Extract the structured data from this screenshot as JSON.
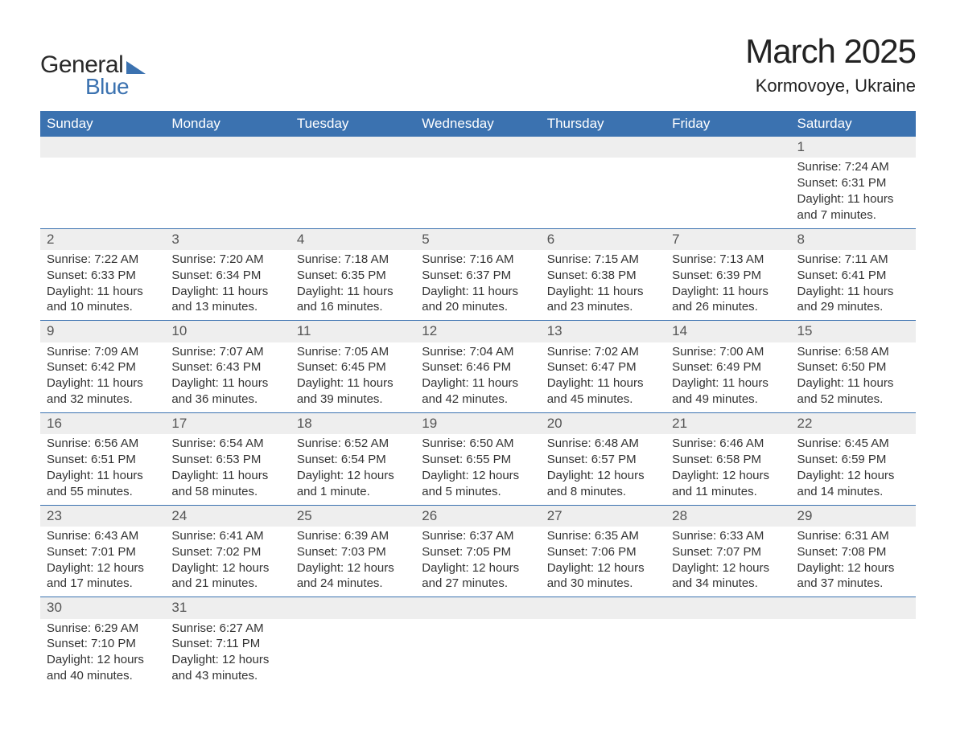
{
  "logo": {
    "text1": "General",
    "text2": "Blue"
  },
  "title": {
    "month": "March 2025",
    "location": "Kormovoye, Ukraine"
  },
  "colors": {
    "header_bg": "#3b72b0",
    "header_fg": "#ffffff",
    "daynum_bg": "#eeeeee",
    "row_border": "#3b72b0",
    "text": "#333333"
  },
  "weekdays": [
    "Sunday",
    "Monday",
    "Tuesday",
    "Wednesday",
    "Thursday",
    "Friday",
    "Saturday"
  ],
  "weeks": [
    [
      null,
      null,
      null,
      null,
      null,
      null,
      {
        "n": "1",
        "sunrise": "Sunrise: 7:24 AM",
        "sunset": "Sunset: 6:31 PM",
        "day1": "Daylight: 11 hours",
        "day2": "and 7 minutes."
      }
    ],
    [
      {
        "n": "2",
        "sunrise": "Sunrise: 7:22 AM",
        "sunset": "Sunset: 6:33 PM",
        "day1": "Daylight: 11 hours",
        "day2": "and 10 minutes."
      },
      {
        "n": "3",
        "sunrise": "Sunrise: 7:20 AM",
        "sunset": "Sunset: 6:34 PM",
        "day1": "Daylight: 11 hours",
        "day2": "and 13 minutes."
      },
      {
        "n": "4",
        "sunrise": "Sunrise: 7:18 AM",
        "sunset": "Sunset: 6:35 PM",
        "day1": "Daylight: 11 hours",
        "day2": "and 16 minutes."
      },
      {
        "n": "5",
        "sunrise": "Sunrise: 7:16 AM",
        "sunset": "Sunset: 6:37 PM",
        "day1": "Daylight: 11 hours",
        "day2": "and 20 minutes."
      },
      {
        "n": "6",
        "sunrise": "Sunrise: 7:15 AM",
        "sunset": "Sunset: 6:38 PM",
        "day1": "Daylight: 11 hours",
        "day2": "and 23 minutes."
      },
      {
        "n": "7",
        "sunrise": "Sunrise: 7:13 AM",
        "sunset": "Sunset: 6:39 PM",
        "day1": "Daylight: 11 hours",
        "day2": "and 26 minutes."
      },
      {
        "n": "8",
        "sunrise": "Sunrise: 7:11 AM",
        "sunset": "Sunset: 6:41 PM",
        "day1": "Daylight: 11 hours",
        "day2": "and 29 minutes."
      }
    ],
    [
      {
        "n": "9",
        "sunrise": "Sunrise: 7:09 AM",
        "sunset": "Sunset: 6:42 PM",
        "day1": "Daylight: 11 hours",
        "day2": "and 32 minutes."
      },
      {
        "n": "10",
        "sunrise": "Sunrise: 7:07 AM",
        "sunset": "Sunset: 6:43 PM",
        "day1": "Daylight: 11 hours",
        "day2": "and 36 minutes."
      },
      {
        "n": "11",
        "sunrise": "Sunrise: 7:05 AM",
        "sunset": "Sunset: 6:45 PM",
        "day1": "Daylight: 11 hours",
        "day2": "and 39 minutes."
      },
      {
        "n": "12",
        "sunrise": "Sunrise: 7:04 AM",
        "sunset": "Sunset: 6:46 PM",
        "day1": "Daylight: 11 hours",
        "day2": "and 42 minutes."
      },
      {
        "n": "13",
        "sunrise": "Sunrise: 7:02 AM",
        "sunset": "Sunset: 6:47 PM",
        "day1": "Daylight: 11 hours",
        "day2": "and 45 minutes."
      },
      {
        "n": "14",
        "sunrise": "Sunrise: 7:00 AM",
        "sunset": "Sunset: 6:49 PM",
        "day1": "Daylight: 11 hours",
        "day2": "and 49 minutes."
      },
      {
        "n": "15",
        "sunrise": "Sunrise: 6:58 AM",
        "sunset": "Sunset: 6:50 PM",
        "day1": "Daylight: 11 hours",
        "day2": "and 52 minutes."
      }
    ],
    [
      {
        "n": "16",
        "sunrise": "Sunrise: 6:56 AM",
        "sunset": "Sunset: 6:51 PM",
        "day1": "Daylight: 11 hours",
        "day2": "and 55 minutes."
      },
      {
        "n": "17",
        "sunrise": "Sunrise: 6:54 AM",
        "sunset": "Sunset: 6:53 PM",
        "day1": "Daylight: 11 hours",
        "day2": "and 58 minutes."
      },
      {
        "n": "18",
        "sunrise": "Sunrise: 6:52 AM",
        "sunset": "Sunset: 6:54 PM",
        "day1": "Daylight: 12 hours",
        "day2": "and 1 minute."
      },
      {
        "n": "19",
        "sunrise": "Sunrise: 6:50 AM",
        "sunset": "Sunset: 6:55 PM",
        "day1": "Daylight: 12 hours",
        "day2": "and 5 minutes."
      },
      {
        "n": "20",
        "sunrise": "Sunrise: 6:48 AM",
        "sunset": "Sunset: 6:57 PM",
        "day1": "Daylight: 12 hours",
        "day2": "and 8 minutes."
      },
      {
        "n": "21",
        "sunrise": "Sunrise: 6:46 AM",
        "sunset": "Sunset: 6:58 PM",
        "day1": "Daylight: 12 hours",
        "day2": "and 11 minutes."
      },
      {
        "n": "22",
        "sunrise": "Sunrise: 6:45 AM",
        "sunset": "Sunset: 6:59 PM",
        "day1": "Daylight: 12 hours",
        "day2": "and 14 minutes."
      }
    ],
    [
      {
        "n": "23",
        "sunrise": "Sunrise: 6:43 AM",
        "sunset": "Sunset: 7:01 PM",
        "day1": "Daylight: 12 hours",
        "day2": "and 17 minutes."
      },
      {
        "n": "24",
        "sunrise": "Sunrise: 6:41 AM",
        "sunset": "Sunset: 7:02 PM",
        "day1": "Daylight: 12 hours",
        "day2": "and 21 minutes."
      },
      {
        "n": "25",
        "sunrise": "Sunrise: 6:39 AM",
        "sunset": "Sunset: 7:03 PM",
        "day1": "Daylight: 12 hours",
        "day2": "and 24 minutes."
      },
      {
        "n": "26",
        "sunrise": "Sunrise: 6:37 AM",
        "sunset": "Sunset: 7:05 PM",
        "day1": "Daylight: 12 hours",
        "day2": "and 27 minutes."
      },
      {
        "n": "27",
        "sunrise": "Sunrise: 6:35 AM",
        "sunset": "Sunset: 7:06 PM",
        "day1": "Daylight: 12 hours",
        "day2": "and 30 minutes."
      },
      {
        "n": "28",
        "sunrise": "Sunrise: 6:33 AM",
        "sunset": "Sunset: 7:07 PM",
        "day1": "Daylight: 12 hours",
        "day2": "and 34 minutes."
      },
      {
        "n": "29",
        "sunrise": "Sunrise: 6:31 AM",
        "sunset": "Sunset: 7:08 PM",
        "day1": "Daylight: 12 hours",
        "day2": "and 37 minutes."
      }
    ],
    [
      {
        "n": "30",
        "sunrise": "Sunrise: 6:29 AM",
        "sunset": "Sunset: 7:10 PM",
        "day1": "Daylight: 12 hours",
        "day2": "and 40 minutes."
      },
      {
        "n": "31",
        "sunrise": "Sunrise: 6:27 AM",
        "sunset": "Sunset: 7:11 PM",
        "day1": "Daylight: 12 hours",
        "day2": "and 43 minutes."
      },
      null,
      null,
      null,
      null,
      null
    ]
  ]
}
